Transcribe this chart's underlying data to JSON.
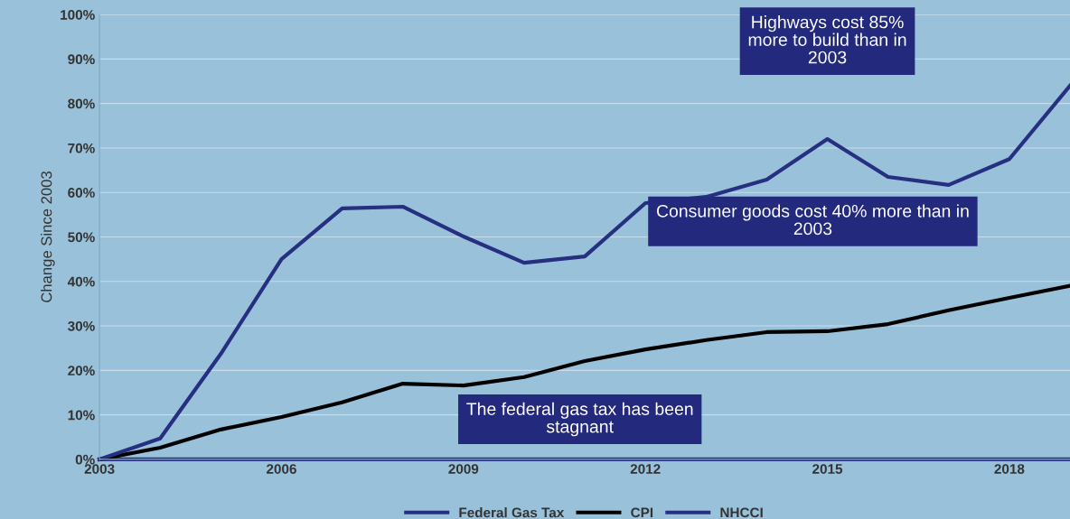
{
  "chart_data": {
    "type": "line",
    "ylabel": "Change Since 2003",
    "x": [
      2003,
      2004,
      2005,
      2006,
      2007,
      2008,
      2009,
      2010,
      2011,
      2012,
      2013,
      2014,
      2015,
      2016,
      2017,
      2018,
      2019
    ],
    "series": [
      {
        "name": "Federal Gas Tax",
        "color": "#262f80",
        "values": [
          0,
          0,
          0,
          0,
          0,
          0,
          0,
          0,
          0,
          0,
          0,
          0,
          0,
          0,
          0,
          0,
          0
        ]
      },
      {
        "name": "CPI",
        "color": "#000000",
        "values": [
          0,
          2.6,
          6.7,
          9.5,
          12.8,
          17,
          16.6,
          18.5,
          22.1,
          24.7,
          26.8,
          28.6,
          28.8,
          30.4,
          33.5,
          36.3,
          39
        ]
      },
      {
        "name": "NHCCI",
        "color": "#262f80",
        "values": [
          0,
          4.7,
          23.7,
          45,
          56.4,
          56.8,
          50.1,
          44.2,
          45.6,
          57.6,
          59,
          62.9,
          72,
          63.5,
          61.7,
          67.5,
          84
        ]
      }
    ],
    "xlim": [
      2003,
      2019
    ],
    "xticks": [
      2003,
      2006,
      2009,
      2012,
      2015,
      2018
    ],
    "ylim": [
      0,
      100
    ],
    "yticks": [
      {
        "value": 0,
        "label": "0%"
      },
      {
        "value": 10,
        "label": "10%"
      },
      {
        "value": 20,
        "label": "20%"
      },
      {
        "value": 30,
        "label": "30%"
      },
      {
        "value": 40,
        "label": "40%"
      },
      {
        "value": 50,
        "label": "50%"
      },
      {
        "value": 60,
        "label": "60%"
      },
      {
        "value": 70,
        "label": "70%"
      },
      {
        "value": 80,
        "label": "80%"
      },
      {
        "value": 90,
        "label": "90%"
      },
      {
        "value": 100,
        "label": "100%"
      }
    ],
    "annotations": [
      "Highways cost 85%\nmore to build than in\n2003",
      "Consumer goods cost 40% more than in\n2003",
      "The federal gas tax has been\nstagnant"
    ],
    "grid": "y",
    "legend": "bottom",
    "marker": "none",
    "line_style": "solid"
  }
}
